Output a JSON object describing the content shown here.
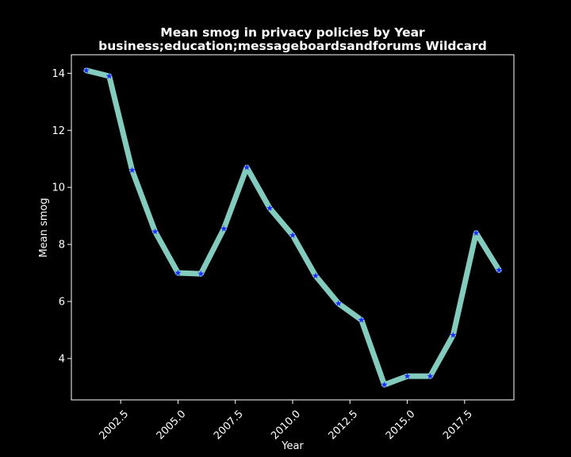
{
  "chart_data": {
    "type": "line",
    "title": "Mean smog in privacy policies by Year",
    "subtitle": "business;education;messageboardsandforums Wildcard",
    "xlabel": "Year",
    "ylabel": "Mean smog",
    "xlim": [
      2000.35,
      2019.65
    ],
    "ylim": [
      2.55,
      14.65
    ],
    "x_ticks": [
      2002.5,
      2005.0,
      2007.5,
      2010.0,
      2012.5,
      2015.0,
      2017.5
    ],
    "x_tick_labels": [
      "2002.5",
      "2005.0",
      "2007.5",
      "2010.0",
      "2012.5",
      "2015.0",
      "2017.5"
    ],
    "y_ticks": [
      4,
      6,
      8,
      10,
      12,
      14
    ],
    "y_tick_labels": [
      "4",
      "6",
      "8",
      "10",
      "12",
      "14"
    ],
    "grid": false,
    "series": [
      {
        "x": [
          2001,
          2002,
          2003,
          2004,
          2005,
          2006,
          2007,
          2008,
          2009,
          2010,
          2011,
          2012,
          2013,
          2014,
          2015,
          2016,
          2017,
          2018,
          2019
        ],
        "values": [
          14.1,
          13.9,
          10.6,
          8.45,
          7.0,
          6.97,
          8.55,
          10.7,
          9.27,
          8.32,
          6.9,
          5.93,
          5.35,
          3.08,
          3.38,
          3.38,
          4.82,
          8.4,
          7.1
        ],
        "line_color": "#83cbbd",
        "marker_color": "#1f2bff",
        "marker": "star"
      }
    ]
  }
}
